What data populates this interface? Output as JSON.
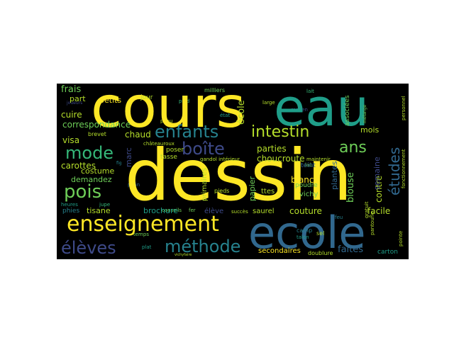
{
  "words": {
    "dessin": "dessin",
    "cours": "cours",
    "eau": "eau",
    "ecole": "ecole",
    "enseignement": "enseignement",
    "enfants": "enfants",
    "intestin": "intestin",
    "mode": "mode",
    "boite": "boîte",
    "ans": "ans",
    "pois": "pois",
    "eleves": "élèves",
    "methode": "méthode",
    "etudes": "études",
    "ecole_v": "école",
    "frais": "frais",
    "part": "part",
    "petits": "petits",
    "jour": "jour",
    "cuire": "cuire",
    "correspondance": "correspondance",
    "chaud": "chaud",
    "visa": "visa",
    "brevet": "brevet",
    "carottes": "carottes",
    "costume": "costume",
    "demandez": "demandez",
    "parties": "parties",
    "choucroute": "choucroute",
    "mois": "mois",
    "blanc": "blanc",
    "papier": "papier",
    "ttes": "ttes",
    "vichy": "vichy",
    "tisane": "tisane",
    "brochure": "brochure",
    "eleve_small": "élève",
    "couture": "couture",
    "facile": "facile",
    "blouse": "blouse",
    "contre": "contre",
    "faites": "faites",
    "secondaires": "secondaires",
    "carton": "carton",
    "saurel": "saurel",
    "poudre": "poudre",
    "teint": "teint",
    "phies": "phies",
    "marc": "marc",
    "primaires": "primaires",
    "chateauroux": "châteauroux",
    "poser": "poser",
    "tasse": "tasse",
    "gandol_interieur": "gandol intérieur",
    "maintenir": "maintenir",
    "associees": "associées",
    "melange": "mélange",
    "personnel": "personnel",
    "fonctionnement": "fonctionnement",
    "semaine": "semaine",
    "plantes": "plantes",
    "gratuit": "gratuit",
    "pantoufle": "pantoufle",
    "pointe": "pointe",
    "camp": "camp",
    "sel": "sel",
    "talon": "talon",
    "doublure": "doublure",
    "succes": "succès",
    "pieds": "pieds",
    "fer": "fer",
    "conseils": "conseils",
    "sucre": "sucre",
    "temps": "temps",
    "plat": "plat",
    "heures": "heures",
    "jupe": "jupe",
    "peau": "peau",
    "plein": "plein",
    "milliers": "milliers",
    "etat": "état",
    "large": "large",
    "moyen": "moyen",
    "lait": "lait",
    "feu": "feu",
    "joueurs": "joueurs",
    "pied": "pied",
    "fig": "fig",
    "lab": "lab",
    "vichyfaire": "vichyfaire"
  },
  "colors": {
    "yellow": "#fde725",
    "green": "#6ece58",
    "lime": "#b5de2b",
    "teal": "#1f9e89",
    "teal2": "#26828e",
    "blue": "#31688e",
    "indigo": "#3e4a89",
    "purple": "#482878",
    "dark": "#440154",
    "mint": "#35b779"
  }
}
